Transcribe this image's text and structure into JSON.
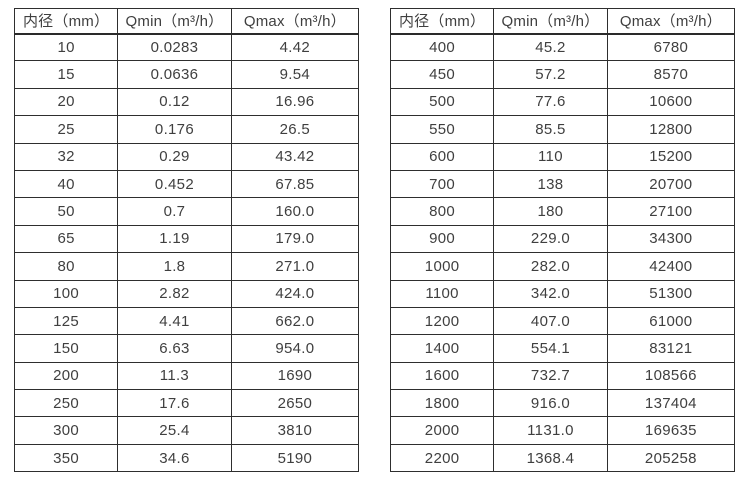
{
  "page": {
    "background_color": "#ffffff",
    "text_color": "#3f3f3f",
    "border_color": "#2e2e2e"
  },
  "tables": [
    {
      "name": "flow-spec-table-small-diameters",
      "headers": [
        "内径（mm）",
        "Qmin（m³/h）",
        "Qmax（m³/h）"
      ],
      "rows": [
        [
          "10",
          "0.0283",
          "4.42"
        ],
        [
          "15",
          "0.0636",
          "9.54"
        ],
        [
          "20",
          "0.12",
          "16.96"
        ],
        [
          "25",
          "0.176",
          "26.5"
        ],
        [
          "32",
          "0.29",
          "43.42"
        ],
        [
          "40",
          "0.452",
          "67.85"
        ],
        [
          "50",
          "0.7",
          "160.0"
        ],
        [
          "65",
          "1.19",
          "179.0"
        ],
        [
          "80",
          "1.8",
          "271.0"
        ],
        [
          "100",
          "2.82",
          "424.0"
        ],
        [
          "125",
          "4.41",
          "662.0"
        ],
        [
          "150",
          "6.63",
          "954.0"
        ],
        [
          "200",
          "11.3",
          "1690"
        ],
        [
          "250",
          "17.6",
          "2650"
        ],
        [
          "300",
          "25.4",
          "3810"
        ],
        [
          "350",
          "34.6",
          "5190"
        ]
      ]
    },
    {
      "name": "flow-spec-table-large-diameters",
      "headers": [
        "内径（mm）",
        "Qmin（m³/h）",
        "Qmax（m³/h）"
      ],
      "rows": [
        [
          "400",
          "45.2",
          "6780"
        ],
        [
          "450",
          "57.2",
          "8570"
        ],
        [
          "500",
          "77.6",
          "10600"
        ],
        [
          "550",
          "85.5",
          "12800"
        ],
        [
          "600",
          "110",
          "15200"
        ],
        [
          "700",
          "138",
          "20700"
        ],
        [
          "800",
          "180",
          "27100"
        ],
        [
          "900",
          "229.0",
          "34300"
        ],
        [
          "1000",
          "282.0",
          "42400"
        ],
        [
          "1100",
          "342.0",
          "51300"
        ],
        [
          "1200",
          "407.0",
          "61000"
        ],
        [
          "1400",
          "554.1",
          "83121"
        ],
        [
          "1600",
          "732.7",
          "108566"
        ],
        [
          "1800",
          "916.0",
          "137404"
        ],
        [
          "2000",
          "1131.0",
          "169635"
        ],
        [
          "2200",
          "1368.4",
          "205258"
        ]
      ]
    }
  ]
}
